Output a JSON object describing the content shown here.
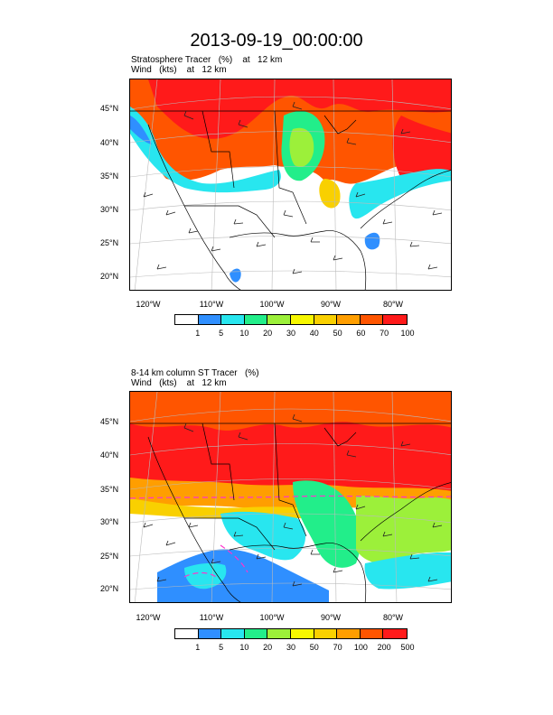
{
  "title": "2013-09-19_00:00:00",
  "panels": [
    {
      "sub1": "Stratosphere Tracer   (%)    at   12 km",
      "sub2": "Wind   (kts)    at   12 km",
      "lat_labels": [
        "45°N",
        "40°N",
        "35°N",
        "30°N",
        "25°N",
        "20°N"
      ],
      "lon_labels": [
        "120°W",
        "110°W",
        "100°W",
        "90°W",
        "80°W"
      ],
      "colorbar": {
        "colors": [
          "#ffffff",
          "#2f8fff",
          "#28e6ef",
          "#22ee8a",
          "#9cf03a",
          "#f7f700",
          "#f9d000",
          "#ff9e00",
          "#ff5500",
          "#ff1a1a"
        ],
        "labels": [
          "1",
          "5",
          "10",
          "20",
          "30",
          "40",
          "50",
          "60",
          "70",
          "100"
        ]
      }
    },
    {
      "sub1": "8-14 km column ST Tracer   (%)",
      "sub2": "Wind   (kts)    at   12 km",
      "lat_labels": [
        "45°N",
        "40°N",
        "35°N",
        "30°N",
        "25°N",
        "20°N"
      ],
      "lon_labels": [
        "120°W",
        "110°W",
        "100°W",
        "90°W",
        "80°W"
      ],
      "colorbar": {
        "colors": [
          "#ffffff",
          "#2f8fff",
          "#28e6ef",
          "#22ee8a",
          "#9cf03a",
          "#f7f700",
          "#f9d000",
          "#ff9e00",
          "#ff5500",
          "#ff1a1a"
        ],
        "labels": [
          "1",
          "5",
          "10",
          "20",
          "30",
          "50",
          "70",
          "100",
          "200",
          "500"
        ]
      }
    }
  ]
}
